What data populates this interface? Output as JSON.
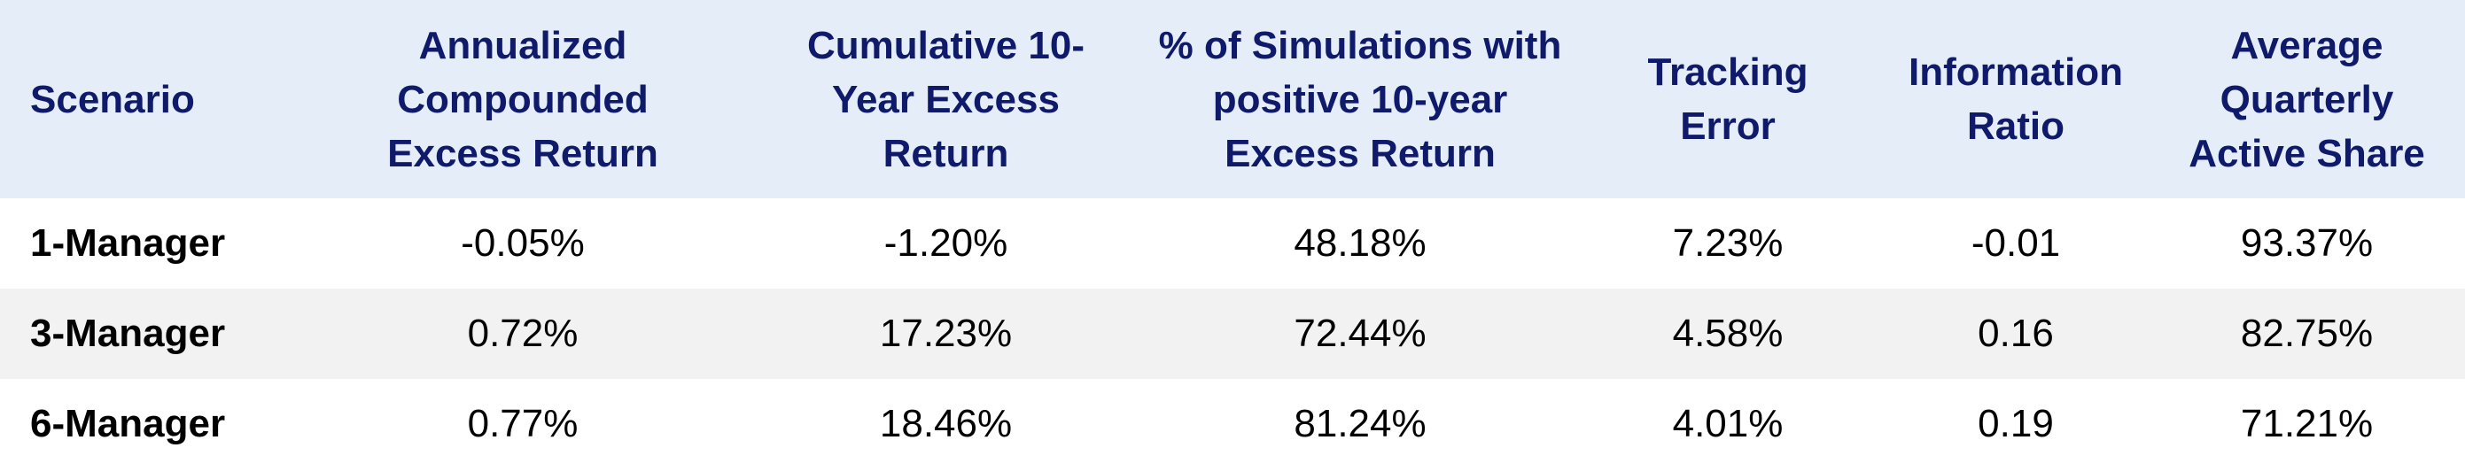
{
  "table": {
    "headers": [
      "Scenario",
      "Annualized Compounded Excess Return",
      "Cumulative 10-Year Excess Return",
      "% of Simulations with positive 10-year Excess Return",
      "Tracking Error",
      "Information Ratio",
      "Average Quarterly Active Share"
    ],
    "rows": [
      [
        "1-Manager",
        "-0.05%",
        "-1.20%",
        "48.18%",
        "7.23%",
        "-0.01",
        "93.37%"
      ],
      [
        "3-Manager",
        "0.72%",
        "17.23%",
        "72.44%",
        "4.58%",
        "0.16",
        "82.75%"
      ],
      [
        "6-Manager",
        "0.77%",
        "18.46%",
        "81.24%",
        "4.01%",
        "0.19",
        "71.21%"
      ]
    ]
  },
  "colors": {
    "header_background": "#e4edf8",
    "header_text": "#0f1a6b",
    "alt_row_background": "#f2f2f2"
  }
}
